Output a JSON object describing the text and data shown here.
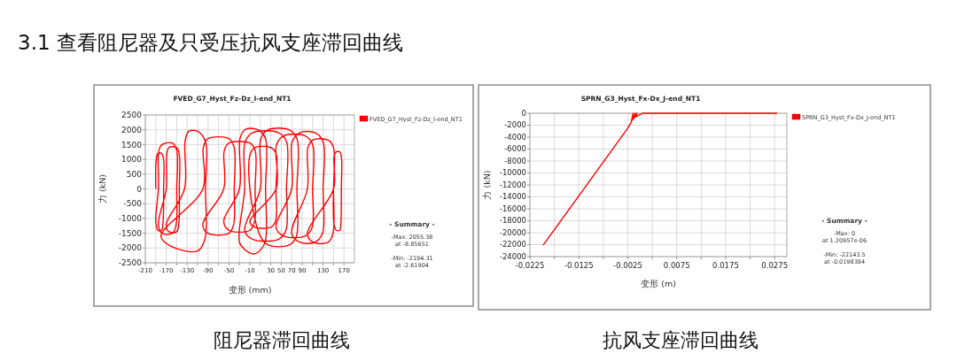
{
  "chart_data": [
    {
      "type": "line",
      "title": "FVED_G7_Hyst_Fz-Dz_I-end_NT1",
      "xlabel": "变形 (mm)",
      "ylabel": "力 (kN)",
      "xlim": [
        -210,
        190
      ],
      "ylim": [
        -2500,
        2500
      ],
      "xticks": [
        -210,
        {
          "value": -190,
          "label": null
        },
        -170,
        {
          "value": -150,
          "label": null
        },
        -130,
        {
          "value": -110,
          "label": null
        },
        -90,
        {
          "value": -70,
          "label": null
        },
        -50,
        {
          "value": -30,
          "label": null
        },
        -10,
        {
          "value": 10,
          "label": null
        },
        30,
        50,
        70,
        90,
        {
          "value": 110,
          "label": null
        },
        130,
        {
          "value": 150,
          "label": null
        },
        170
      ],
      "yticks": [
        -2500,
        -2000,
        -1500,
        -1000,
        -500,
        0,
        500,
        1000,
        1500,
        2000,
        2500
      ],
      "grid": true,
      "legend": "top right",
      "marker": "none",
      "line_style": "solid",
      "annotations": [
        "- Summary -",
        "-Max: 2055.38",
        "at -8.85651",
        "-Min: -2194.31",
        "at -2.61904",
        "阻尼器滞回曲线",
        "3.1 查看阻尼器及只受压抗风支座滞回曲线"
      ],
      "series": [
        {
          "name": "FVED_G7_Hyst_Fz-Dz_I-end_NT1",
          "color": "#ff0000",
          "x": [
            -190,
            -189,
            -186,
            -179,
            -175,
            -175,
            -176,
            -179,
            -186,
            -190,
            -185,
            -184,
            -178,
            -158,
            -150,
            -150,
            -151,
            -158,
            -178,
            -185,
            -170,
            -169,
            -165,
            -150,
            -145,
            -145,
            -146,
            -150,
            -165,
            -170,
            -135,
            -134,
            -127,
            -110,
            -95,
            -95,
            -96,
            -110,
            -160,
            -180,
            -100,
            -99,
            -90,
            -50,
            -40,
            -40,
            -41,
            -50,
            -90,
            -100,
            -60,
            -59,
            -50,
            -10,
            0,
            0,
            -1,
            -10,
            -50,
            -60,
            -30,
            -29,
            -20,
            -9,
            10,
            20,
            20,
            19,
            5,
            -3,
            -20,
            -30,
            -20,
            -19,
            -5,
            45,
            60,
            60,
            59,
            45,
            -5,
            -20,
            10,
            11,
            25,
            65,
            80,
            80,
            79,
            65,
            25,
            10,
            -10,
            -9,
            0,
            30,
            40,
            40,
            39,
            30,
            0,
            -10,
            40,
            41,
            55,
            95,
            110,
            110,
            109,
            95,
            55,
            40,
            70,
            71,
            85,
            115,
            130,
            130,
            129,
            115,
            85,
            70,
            100,
            101,
            110,
            140,
            150,
            150,
            149,
            140,
            110,
            100,
            150,
            151,
            155,
            162,
            165,
            165,
            164,
            162,
            155,
            151,
            150
          ],
          "values": [
            0,
            1000,
            1200,
            1200,
            1000,
            0,
            -1100,
            -1400,
            -1400,
            -1100,
            0,
            1300,
            1500,
            1550,
            1300,
            0,
            -1200,
            -1500,
            -1500,
            -1200,
            0,
            1150,
            1400,
            1400,
            1150,
            0,
            -1200,
            -1450,
            -1450,
            -1200,
            0,
            1600,
            1950,
            1950,
            1600,
            0,
            -1700,
            -2100,
            -1950,
            -1600,
            0,
            1400,
            1700,
            1700,
            1400,
            0,
            -1200,
            -1500,
            -1500,
            -1200,
            0,
            1300,
            1550,
            1550,
            1300,
            0,
            -1100,
            -1400,
            -1400,
            -1100,
            0,
            1700,
            2000,
            2050,
            1950,
            1700,
            0,
            -1800,
            -2150,
            -2200,
            -2050,
            -1800,
            0,
            1600,
            1900,
            1900,
            1600,
            0,
            -1400,
            -1700,
            -1700,
            -1400,
            0,
            1700,
            2000,
            2000,
            1700,
            0,
            -1600,
            -1900,
            -1900,
            -1600,
            0,
            1200,
            1400,
            1400,
            1200,
            0,
            -1100,
            -1300,
            -1300,
            -1100,
            0,
            1500,
            1800,
            1800,
            1500,
            0,
            -1300,
            -1600,
            -1600,
            -1300,
            0,
            1600,
            1900,
            1900,
            1600,
            0,
            -1500,
            -1800,
            -1800,
            -1500,
            0,
            1400,
            1650,
            1650,
            1400,
            0,
            -1500,
            -1800,
            -1800,
            -1500,
            0,
            1100,
            1250,
            1250,
            1100,
            0,
            -1200,
            -1400,
            -1400,
            -1200,
            0
          ]
        }
      ]
    },
    {
      "type": "line",
      "title": "SPRN_G3_Hyst_Fx-Dx_J-end_NT1",
      "xlabel": "变形 (m)",
      "ylabel": "力 (kN)",
      "xlim": [
        -0.0225,
        0.03
      ],
      "ylim": [
        -24000,
        0
      ],
      "xticks": [
        -0.0225,
        {
          "value": -0.0175,
          "label": null
        },
        -0.0125,
        {
          "value": -0.0075,
          "label": null
        },
        -0.0025,
        {
          "value": 0.0025,
          "label": null
        },
        0.0075,
        {
          "value": 0.0125,
          "label": null
        },
        0.0175,
        {
          "value": 0.0225,
          "label": null
        },
        0.0275
      ],
      "yticks": [
        -24000,
        -22000,
        -20000,
        -18000,
        -16000,
        -14000,
        -12000,
        -10000,
        -8000,
        -6000,
        -4000,
        -2000,
        0
      ],
      "grid": true,
      "legend": "top right",
      "marker": "none",
      "line_style": "solid",
      "annotations": [
        "- Summary -",
        "-Max: 0",
        "at 1.20957e-06",
        "-Min: -22143.5",
        "at -0.0198384",
        "抗风支座滞回曲线"
      ],
      "series": [
        {
          "name": "SPRN_G3_Hyst_Fx-Dx_J-end_NT1",
          "color": "#ff0000",
          "x": [
            -0.0198,
            -0.0025,
            -0.0018,
            -0.0014,
            -0.0016,
            -0.001,
            -0.0013,
            -0.0006,
            -0.0009,
            0.0005,
            0.028
          ],
          "values": [
            -22100,
            -2500,
            -1500,
            0,
            -1200,
            0,
            -900,
            0,
            -600,
            0,
            0
          ]
        }
      ]
    }
  ]
}
